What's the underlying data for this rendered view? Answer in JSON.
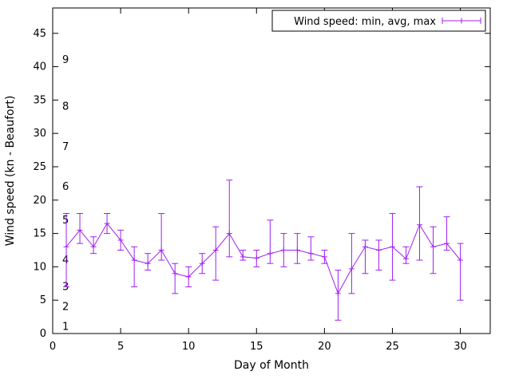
{
  "window": {
    "background": "#ffffff",
    "foreground": "#000000"
  },
  "chart_data": {
    "type": "line",
    "subtype": "yerrorlines",
    "title": "",
    "xlabel": "Day of Month",
    "ylabel": "Wind speed (kn - Beaufort)",
    "legend": {
      "label": "Wind speed: min, avg, max",
      "position": "top-right",
      "border": true
    },
    "series_color": "#a020f0",
    "grid": false,
    "xlim": [
      0,
      32.2
    ],
    "ylim": [
      0,
      48.8
    ],
    "xticks": [
      0,
      5,
      10,
      15,
      20,
      25,
      30
    ],
    "yticks": [
      0,
      5,
      10,
      15,
      20,
      25,
      30,
      35,
      40,
      45
    ],
    "beaufort_scale": [
      {
        "bft": "1",
        "kn": 1
      },
      {
        "bft": "2",
        "kn": 4
      },
      {
        "bft": "3",
        "kn": 7
      },
      {
        "bft": "4",
        "kn": 11
      },
      {
        "bft": "5",
        "kn": 17
      },
      {
        "bft": "6",
        "kn": 22
      },
      {
        "bft": "7",
        "kn": 28
      },
      {
        "bft": "8",
        "kn": 34
      },
      {
        "bft": "9",
        "kn": 41
      }
    ],
    "x": [
      1,
      2,
      3,
      4,
      5,
      6,
      7,
      8,
      9,
      10,
      11,
      12,
      13,
      14,
      15,
      16,
      17,
      18,
      19,
      20,
      21,
      22,
      23,
      24,
      25,
      26,
      27,
      28,
      29,
      30
    ],
    "series": [
      {
        "name": "min",
        "values": [
          7,
          13.5,
          12,
          15,
          12.5,
          7,
          9.5,
          11,
          6,
          7,
          9,
          8,
          11.5,
          11,
          10,
          10.5,
          10,
          10.5,
          11,
          10.5,
          2,
          6,
          9,
          9.5,
          8,
          10.5,
          11,
          9,
          12.5,
          5
        ]
      },
      {
        "name": "avg",
        "values": [
          13,
          15.5,
          13,
          16.5,
          14,
          11,
          10.5,
          12.5,
          9,
          8.5,
          10.5,
          12.5,
          15,
          11.5,
          11.3,
          12,
          12.5,
          12.5,
          12,
          11.5,
          6,
          9.7,
          13,
          12.5,
          13,
          11.2,
          16.3,
          13,
          13.5,
          11
        ]
      },
      {
        "name": "max",
        "values": [
          18,
          18,
          14.5,
          18,
          15.5,
          13,
          12,
          18,
          10.5,
          10,
          12,
          16,
          23,
          12.5,
          12.5,
          17,
          15,
          15,
          14.5,
          12.5,
          9.5,
          15,
          14,
          14,
          18,
          13,
          22,
          16,
          17.5,
          13.5
        ]
      }
    ]
  }
}
